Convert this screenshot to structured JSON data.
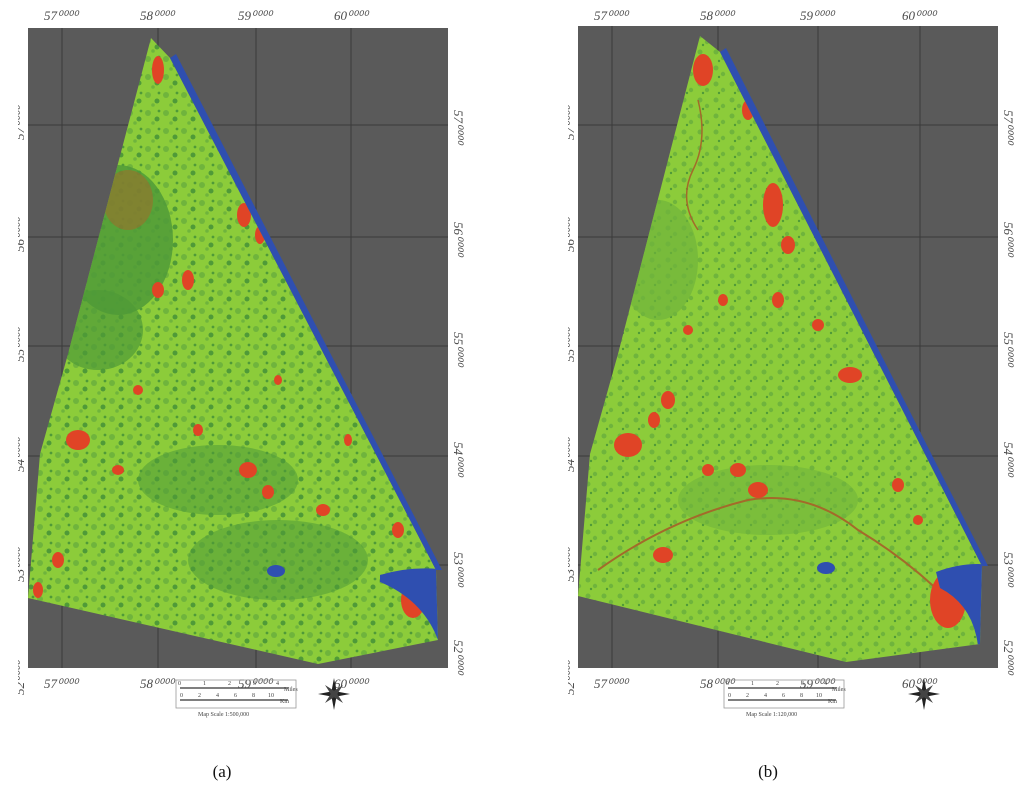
{
  "figure": {
    "panels": [
      {
        "id": "a",
        "caption": "(a)",
        "top_ticks": [
          "57⁰⁰⁰⁰",
          "58⁰⁰⁰⁰",
          "59⁰⁰⁰⁰",
          "60⁰⁰⁰⁰"
        ],
        "bottom_ticks": [
          "57⁰⁰⁰⁰",
          "58⁰⁰⁰⁰",
          "59⁰⁰⁰⁰",
          "60⁰⁰⁰⁰"
        ],
        "left_ticks": [
          "57⁰⁰⁰⁰",
          "56⁰⁰⁰⁰",
          "55⁰⁰⁰⁰",
          "54⁰⁰⁰⁰",
          "53⁰⁰⁰⁰",
          "52⁰⁰⁰⁰"
        ],
        "right_ticks": [
          "57⁰⁰⁰⁰",
          "56⁰⁰⁰⁰",
          "55⁰⁰⁰⁰",
          "54⁰⁰⁰⁰",
          "53⁰⁰⁰⁰",
          "52⁰⁰⁰⁰"
        ],
        "scale_label": "Map Scale 1:500,000"
      },
      {
        "id": "b",
        "caption": "(b)",
        "top_ticks": [
          "57⁰⁰⁰⁰",
          "58⁰⁰⁰⁰",
          "59⁰⁰⁰⁰",
          "60⁰⁰⁰⁰"
        ],
        "bottom_ticks": [
          "57⁰⁰⁰⁰",
          "58⁰⁰⁰⁰",
          "59⁰⁰⁰⁰",
          "60⁰⁰⁰⁰"
        ],
        "left_ticks": [
          "57⁰⁰⁰⁰",
          "56⁰⁰⁰⁰",
          "55⁰⁰⁰⁰",
          "54⁰⁰⁰⁰",
          "53⁰⁰⁰⁰",
          "52⁰⁰⁰⁰"
        ],
        "right_ticks": [
          "57⁰⁰⁰⁰",
          "56⁰⁰⁰⁰",
          "55⁰⁰⁰⁰",
          "54⁰⁰⁰⁰",
          "53⁰⁰⁰⁰",
          "52⁰⁰⁰⁰"
        ],
        "scale_label": "Map Scale 1:120,000"
      }
    ],
    "scalebar": {
      "miles_label": "Miles",
      "km_label": "Km",
      "miles_ticks": [
        "0",
        "1",
        "2",
        "3",
        "4"
      ],
      "km_ticks": [
        "0",
        "2",
        "4",
        "6",
        "8",
        "10"
      ]
    },
    "colors": {
      "background": "#5a5a5a",
      "light_green": "#8ccc3a",
      "dark_green": "#4f9a38",
      "mid_green": "#6fb43c",
      "red_patch": "#e04426",
      "brown_patch": "#a36a2a",
      "water_blue": "#2f4fb0",
      "grid_line": "#3a3a3a"
    },
    "icons": {
      "north_arrow": "compass-rose-icon"
    }
  }
}
